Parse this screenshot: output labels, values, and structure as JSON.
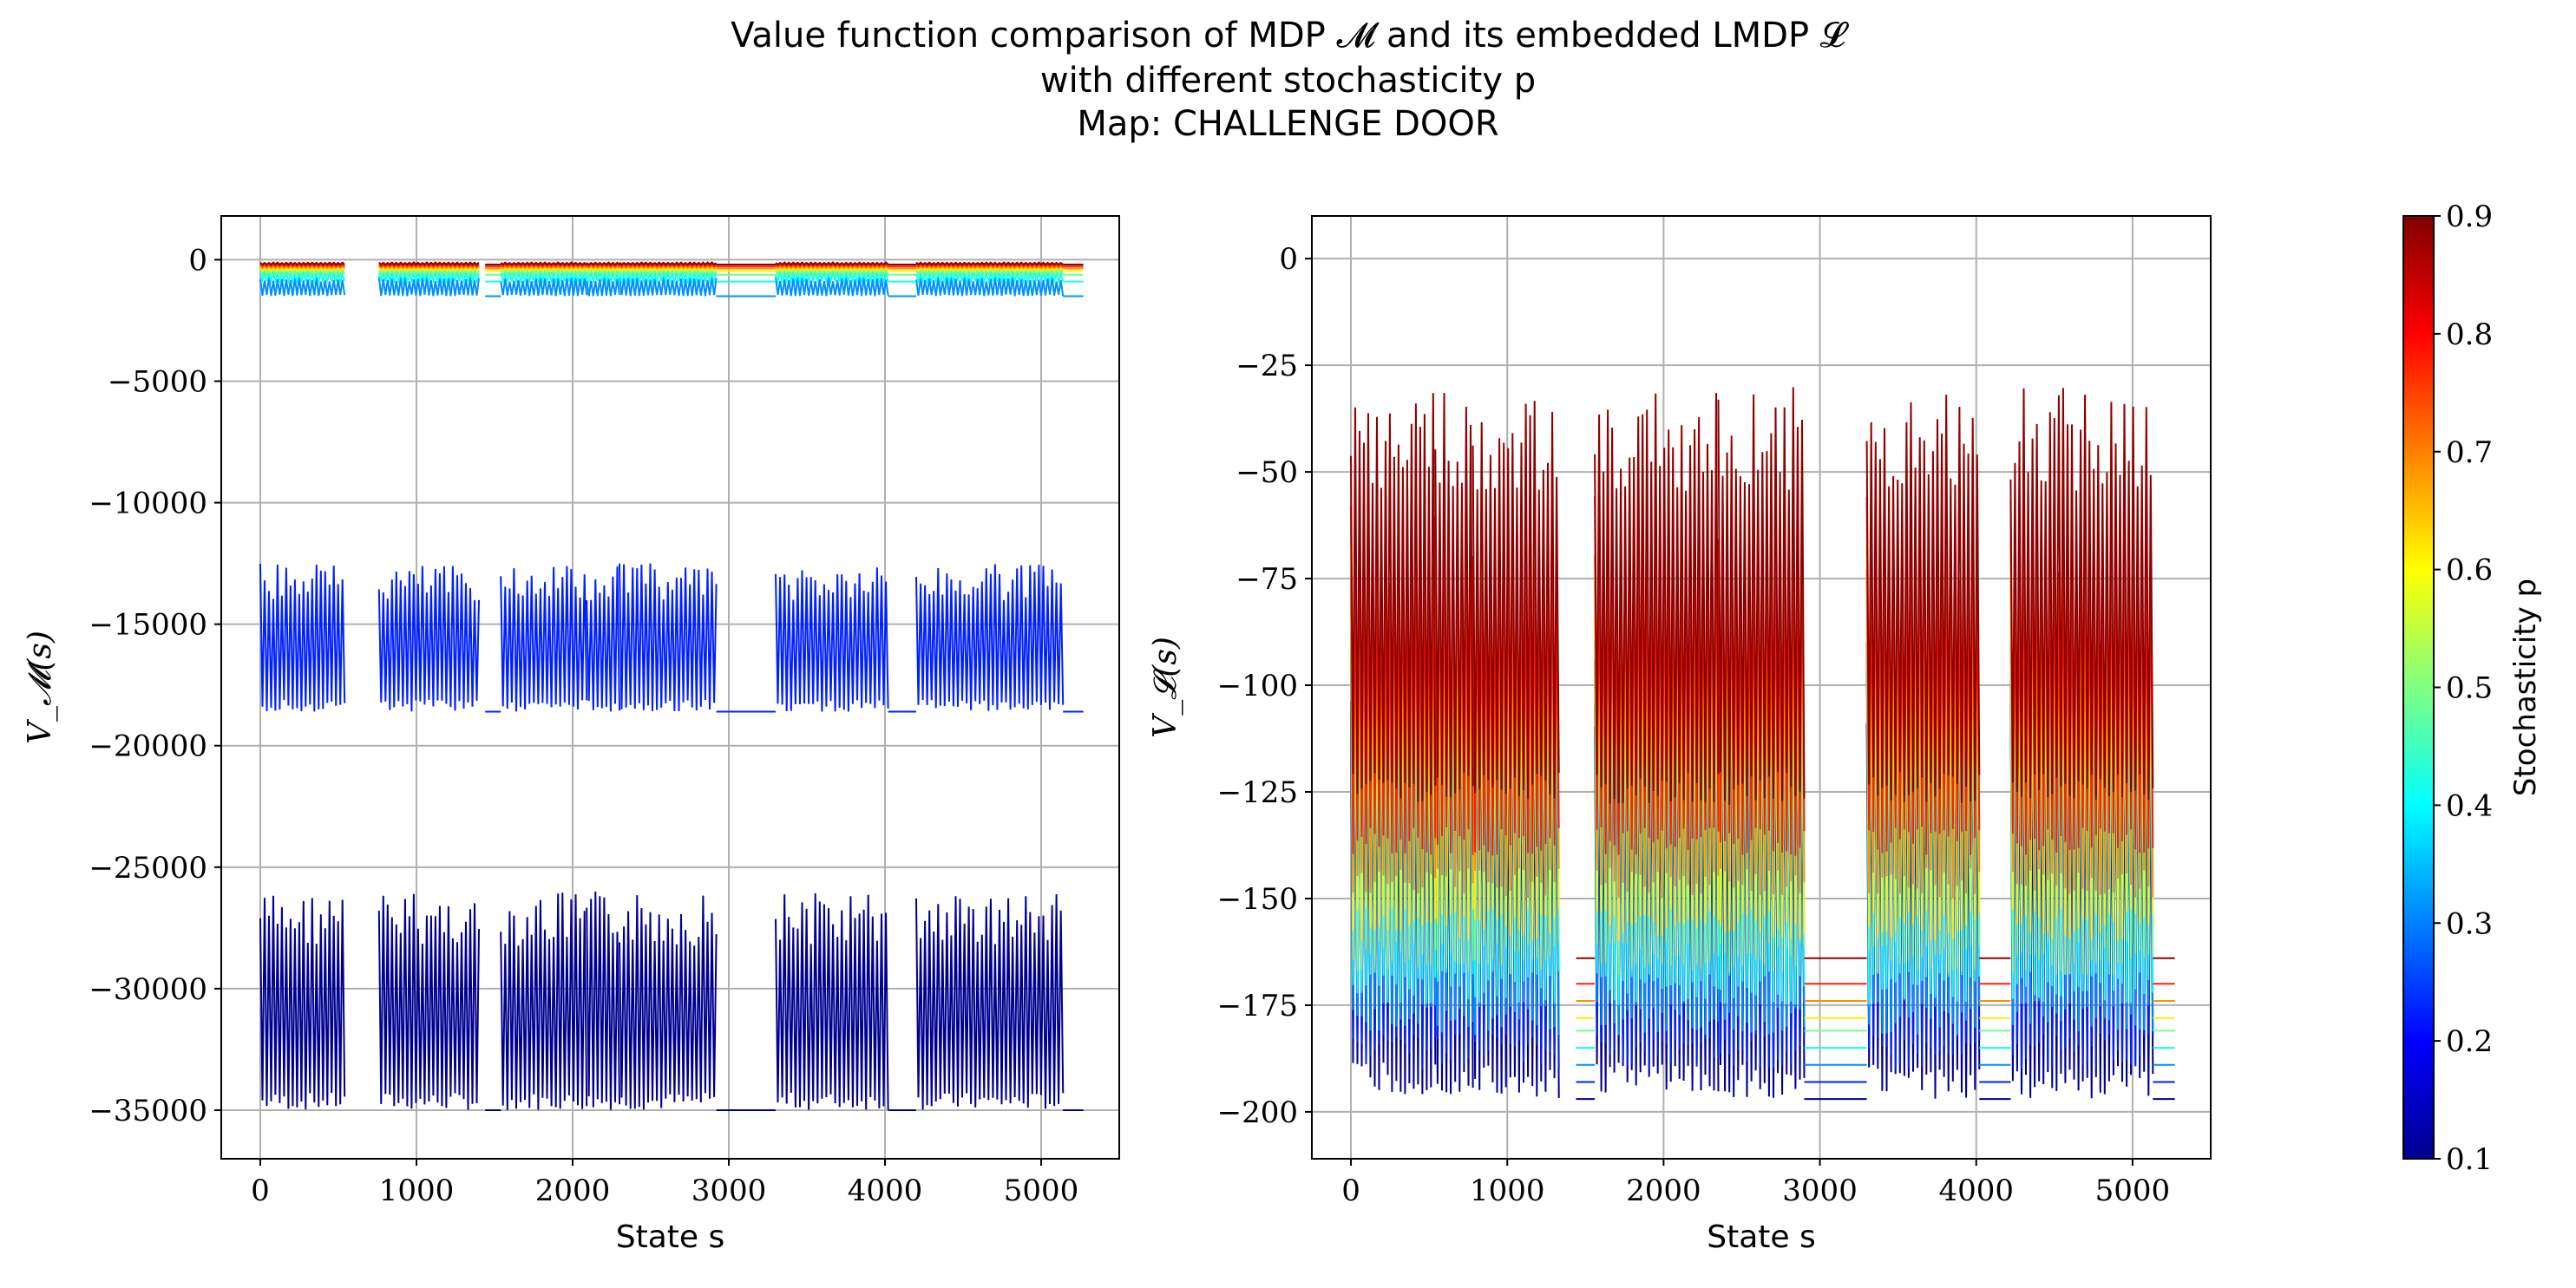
{
  "figure": {
    "title_lines": [
      "Value function comparison of MDP 𝓜 and its embedded LMDP 𝓛",
      "with different stochasticity p",
      "Map: CHALLENGE DOOR"
    ]
  },
  "chart_data": [
    {
      "type": "line",
      "panel": "left",
      "xlabel": "State s",
      "ylabel": "V_𝓜(s)",
      "xlim": [
        -250,
        5500
      ],
      "ylim": [
        -37000,
        1800
      ],
      "xticks": [
        0,
        1000,
        2000,
        3000,
        4000,
        5000
      ],
      "yticks": [
        0,
        -5000,
        -10000,
        -15000,
        -20000,
        -25000,
        -30000,
        -35000
      ],
      "grid": true,
      "segments": [
        {
          "start": 0,
          "end": 540
        },
        {
          "start": 760,
          "end": 1400
        },
        {
          "start": 1440,
          "end": 1540,
          "flat": true
        },
        {
          "start": 1540,
          "end": 2090
        },
        {
          "start": 2090,
          "end": 2300
        },
        {
          "start": 2300,
          "end": 2920
        },
        {
          "start": 2920,
          "end": 3300,
          "flat": true
        },
        {
          "start": 3300,
          "end": 4020
        },
        {
          "start": 4020,
          "end": 4200,
          "flat": true
        },
        {
          "start": 4200,
          "end": 5140
        },
        {
          "start": 5140,
          "end": 5270,
          "flat": true
        }
      ],
      "series": [
        {
          "p": 0.1,
          "color": "#00008f",
          "base": -35000,
          "peak": -26000,
          "flat": -35000
        },
        {
          "p": 0.2,
          "color": "#0020ff",
          "base": -18600,
          "peak": -12500,
          "flat": -18600
        },
        {
          "p": 0.3,
          "color": "#0090ff",
          "base": -1500,
          "peak": -700,
          "flat": -1500
        },
        {
          "p": 0.4,
          "color": "#10ffef",
          "base": -900,
          "peak": -500,
          "flat": -900
        },
        {
          "p": 0.5,
          "color": "#70ff8f",
          "base": -620,
          "peak": -380,
          "flat": -620
        },
        {
          "p": 0.6,
          "color": "#ffef00",
          "base": -460,
          "peak": -300,
          "flat": -460
        },
        {
          "p": 0.7,
          "color": "#ff9000",
          "base": -360,
          "peak": -230,
          "flat": -360
        },
        {
          "p": 0.8,
          "color": "#ff2000",
          "base": -280,
          "peak": -170,
          "flat": -280
        },
        {
          "p": 0.9,
          "color": "#8f0000",
          "base": -200,
          "peak": -110,
          "flat": -200
        }
      ]
    },
    {
      "type": "line",
      "panel": "right",
      "xlabel": "State s",
      "ylabel": "V_𝓛(s)",
      "xlim": [
        -250,
        5500
      ],
      "ylim": [
        -211,
        10
      ],
      "xticks": [
        0,
        1000,
        2000,
        3000,
        4000,
        5000
      ],
      "yticks": [
        0,
        -25,
        -50,
        -75,
        -100,
        -125,
        -150,
        -175,
        -200
      ],
      "grid": true,
      "segments": [
        {
          "start": 0,
          "end": 540
        },
        {
          "start": 540,
          "end": 780
        },
        {
          "start": 780,
          "end": 1330
        },
        {
          "start": 1440,
          "end": 1560,
          "flat": true
        },
        {
          "start": 1560,
          "end": 2060
        },
        {
          "start": 2060,
          "end": 2350
        },
        {
          "start": 2350,
          "end": 2900
        },
        {
          "start": 2900,
          "end": 3300,
          "flat": true
        },
        {
          "start": 3300,
          "end": 4020
        },
        {
          "start": 4020,
          "end": 4220,
          "flat": true
        },
        {
          "start": 4220,
          "end": 5130
        },
        {
          "start": 5130,
          "end": 5270,
          "flat": true
        }
      ],
      "series": [
        {
          "p": 0.1,
          "color": "#00008f",
          "base": -197,
          "peak": -90,
          "flat": -197
        },
        {
          "p": 0.2,
          "color": "#0020ff",
          "base": -190,
          "peak": -85,
          "flat": -193
        },
        {
          "p": 0.3,
          "color": "#0090ff",
          "base": -182,
          "peak": -80,
          "flat": -189
        },
        {
          "p": 0.4,
          "color": "#10ffef",
          "base": -175,
          "peak": -75,
          "flat": -185
        },
        {
          "p": 0.5,
          "color": "#70ff8f",
          "base": -168,
          "peak": -70,
          "flat": -181
        },
        {
          "p": 0.6,
          "color": "#ffef00",
          "base": -160,
          "peak": -65,
          "flat": -178
        },
        {
          "p": 0.7,
          "color": "#ff9000",
          "base": -150,
          "peak": -60,
          "flat": -174
        },
        {
          "p": 0.8,
          "color": "#ff2000",
          "base": -140,
          "peak": -55,
          "flat": -170
        },
        {
          "p": 0.9,
          "color": "#8f0000",
          "base": -128,
          "peak": -30,
          "flat": -164
        }
      ]
    }
  ],
  "colorbar": {
    "label": "Stochasticity p",
    "range": [
      0.1,
      0.9
    ],
    "ticks": [
      "0.1",
      "0.2",
      "0.3",
      "0.4",
      "0.5",
      "0.6",
      "0.7",
      "0.8",
      "0.9"
    ],
    "colormap": [
      "#00008f",
      "#0000ff",
      "#0080ff",
      "#00ffff",
      "#80ff80",
      "#ffff00",
      "#ff8000",
      "#ff0000",
      "#800000"
    ]
  }
}
